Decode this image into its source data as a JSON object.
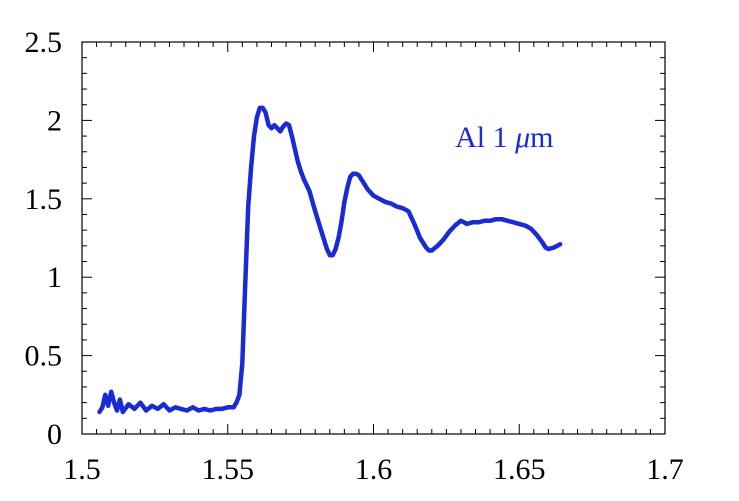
{
  "chart_data": {
    "type": "line",
    "title": "",
    "xlabel": "",
    "ylabel": "",
    "xlim": [
      1.5,
      1.7
    ],
    "ylim": [
      0,
      2.5
    ],
    "x_ticks": [
      1.5,
      1.55,
      1.6,
      1.65,
      1.7
    ],
    "x_tick_labels": [
      "1.5",
      "1.55",
      "1.6",
      "1.65",
      "1.7"
    ],
    "y_ticks": [
      0,
      0.5,
      1,
      1.5,
      2,
      2.5
    ],
    "y_tick_labels": [
      "0",
      "0.5",
      "1",
      "1.5",
      "2",
      "2.5"
    ],
    "grid": false,
    "series_color": "#1a2bd6",
    "annotation": {
      "prefix": "Al 1 ",
      "symbol": "μ",
      "suffix": "m",
      "x": 1.628,
      "y": 1.83
    },
    "series": [
      {
        "x": [
          1.506,
          1.507,
          1.508,
          1.509,
          1.51,
          1.511,
          1.512,
          1.513,
          1.514,
          1.516,
          1.518,
          1.52,
          1.522,
          1.524,
          1.526,
          1.528,
          1.53,
          1.532,
          1.534,
          1.536,
          1.538,
          1.54,
          1.542,
          1.544,
          1.546,
          1.548,
          1.55,
          1.552,
          1.553,
          1.554,
          1.555,
          1.556,
          1.557,
          1.558,
          1.559,
          1.56,
          1.561,
          1.562,
          1.563,
          1.564,
          1.565,
          1.566,
          1.567,
          1.568,
          1.569,
          1.57,
          1.571,
          1.572,
          1.573,
          1.574,
          1.575,
          1.576,
          1.578,
          1.58,
          1.582,
          1.584,
          1.585,
          1.586,
          1.587,
          1.588,
          1.589,
          1.59,
          1.591,
          1.592,
          1.593,
          1.594,
          1.595,
          1.596,
          1.597,
          1.598,
          1.6,
          1.602,
          1.604,
          1.606,
          1.608,
          1.61,
          1.612,
          1.614,
          1.616,
          1.618,
          1.619,
          1.62,
          1.622,
          1.624,
          1.626,
          1.628,
          1.63,
          1.631,
          1.632,
          1.634,
          1.636,
          1.638,
          1.64,
          1.642,
          1.644,
          1.646,
          1.648,
          1.65,
          1.652,
          1.654,
          1.656,
          1.658,
          1.659,
          1.66,
          1.662,
          1.664
        ],
        "y": [
          0.14,
          0.17,
          0.25,
          0.18,
          0.27,
          0.2,
          0.15,
          0.22,
          0.14,
          0.19,
          0.16,
          0.2,
          0.15,
          0.18,
          0.16,
          0.19,
          0.15,
          0.17,
          0.16,
          0.15,
          0.17,
          0.15,
          0.16,
          0.15,
          0.16,
          0.16,
          0.17,
          0.17,
          0.2,
          0.25,
          0.45,
          0.95,
          1.45,
          1.7,
          1.9,
          2.02,
          2.08,
          2.08,
          2.05,
          1.97,
          1.95,
          1.97,
          1.95,
          1.93,
          1.96,
          1.98,
          1.97,
          1.9,
          1.82,
          1.74,
          1.68,
          1.63,
          1.55,
          1.42,
          1.3,
          1.18,
          1.14,
          1.14,
          1.18,
          1.25,
          1.35,
          1.48,
          1.57,
          1.64,
          1.66,
          1.66,
          1.65,
          1.62,
          1.59,
          1.56,
          1.52,
          1.5,
          1.48,
          1.47,
          1.45,
          1.44,
          1.42,
          1.34,
          1.25,
          1.19,
          1.17,
          1.17,
          1.2,
          1.24,
          1.29,
          1.33,
          1.36,
          1.35,
          1.34,
          1.35,
          1.35,
          1.36,
          1.36,
          1.37,
          1.37,
          1.36,
          1.35,
          1.34,
          1.33,
          1.31,
          1.27,
          1.22,
          1.19,
          1.18,
          1.19,
          1.21
        ]
      }
    ]
  }
}
